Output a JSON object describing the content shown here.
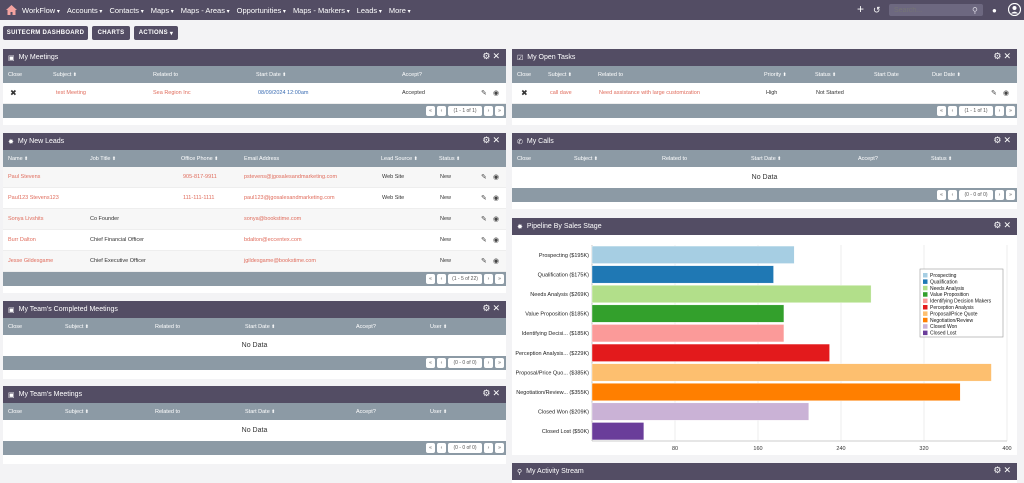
{
  "nav": {
    "items": [
      "WorkFlow",
      "Accounts",
      "Contacts",
      "Maps",
      "Maps - Areas",
      "Opportunities",
      "Maps - Markers",
      "Leads",
      "More"
    ],
    "search_placeholder": "Search..."
  },
  "toolbar": {
    "dashboard": "SUITECRM DASHBOARD",
    "charts": "CHARTS",
    "actions": "ACTIONS"
  },
  "meetings": {
    "title": "My Meetings",
    "cols": [
      "Close",
      "Subject",
      "Related to",
      "Start Date",
      "Accept?"
    ],
    "rows": [
      {
        "subject": "test Meeting",
        "related": "Sea Region Inc",
        "date": "08/09/2024 12:00am",
        "accept": "Accepted"
      }
    ],
    "pager": "(1 - 1 of 1)"
  },
  "tasks": {
    "title": "My Open Tasks",
    "cols": [
      "Close",
      "Subject",
      "Related to",
      "Priority",
      "Status",
      "Start Date",
      "Due Date"
    ],
    "rows": [
      {
        "subject": "call dave",
        "related": "Need assistance with large customization",
        "priority": "High",
        "status": "Not Started"
      }
    ],
    "pager": "(1 - 1 of 1)"
  },
  "leads": {
    "title": "My New Leads",
    "cols": [
      "Name",
      "Job Title",
      "Office Phone",
      "Email Address",
      "Lead Source",
      "Status"
    ],
    "rows": [
      {
        "name": "Paul Stevens",
        "job": "",
        "phone": "905-817-9911",
        "email": "pstevens@jgosalesandmarketing.com",
        "source": "Web Site",
        "status": "New"
      },
      {
        "name": "Paul123 Stevens123",
        "job": "",
        "phone": "111-111-1111",
        "email": "paul123@jgosalesandmarketing.com",
        "source": "Web Site",
        "status": "New"
      },
      {
        "name": "Sonya Livshits",
        "job": "Co Founder",
        "phone": "",
        "email": "sonya@bookstime.com",
        "source": "",
        "status": "New"
      },
      {
        "name": "Burr Dalton",
        "job": "Chief Financial Officer",
        "phone": "",
        "email": "bdalton@eccentex.com",
        "source": "",
        "status": "New"
      },
      {
        "name": "Jesse Gildesgame",
        "job": "Chief Executive Officer",
        "phone": "",
        "email": "jgildesgame@bookstime.com",
        "source": "",
        "status": "New"
      }
    ],
    "pager": "(1 - 5 of 22)"
  },
  "calls": {
    "title": "My Calls",
    "cols": [
      "Close",
      "Subject",
      "Related to",
      "Start Date",
      "Accept?",
      "Status"
    ],
    "nodata": "No Data",
    "pager": "(0 - 0 of 0)"
  },
  "team_completed": {
    "title": "My Team's Completed Meetings",
    "cols": [
      "Close",
      "Subject",
      "Related to",
      "Start Date",
      "Accept?",
      "User"
    ],
    "nodata": "No Data",
    "pager": "(0 - 0 of 0)"
  },
  "team_meetings": {
    "title": "My Team's Meetings",
    "cols": [
      "Close",
      "Subject",
      "Related to",
      "Start Date",
      "Accept?",
      "User"
    ],
    "nodata": "No Data",
    "pager": "(0 - 0 of 0)"
  },
  "pipeline": {
    "title": "Pipeline By Sales Stage"
  },
  "activity": {
    "title": "My Activity Stream"
  },
  "chart_data": {
    "type": "bar",
    "orientation": "horizontal",
    "title": "Pipeline By Sales Stage",
    "categories": [
      "Prospecting ($195K)",
      "Qualification ($175K)",
      "Needs Analysis ($269K)",
      "Value Proposition ($185K)",
      "Identifying Decisi... ($185K)",
      "Perception Analysis... ($229K)",
      "Proposal/Price Quo... ($385K)",
      "Negotiation/Review... ($355K)",
      "Closed Won ($209K)",
      "Closed Lost ($50K)"
    ],
    "values": [
      195,
      175,
      269,
      185,
      185,
      229,
      385,
      355,
      209,
      50
    ],
    "colors": [
      "#a6cee3",
      "#1f78b4",
      "#b2df8a",
      "#33a02c",
      "#fb9a99",
      "#e31a1c",
      "#fdbf6f",
      "#ff7f00",
      "#cab2d6",
      "#6a3d9a"
    ],
    "legend": [
      "Prospecting",
      "Qualification",
      "Needs Analysis",
      "Value Proposition",
      "Identifying Decision Makers",
      "Perception Analysis",
      "Proposal/Price Quote",
      "Negotiation/Review",
      "Closed Won",
      "Closed Lost"
    ],
    "xticks": [
      80,
      160,
      240,
      320,
      400
    ],
    "xlim": [
      0,
      400
    ]
  }
}
